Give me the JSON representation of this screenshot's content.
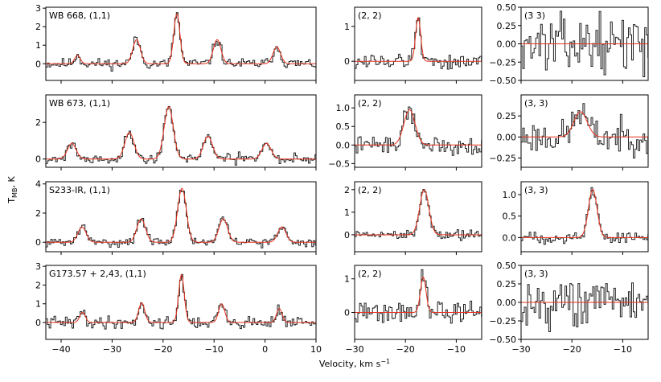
{
  "figure": {
    "ylabel": "T",
    "ylabel_sub": "MB",
    "ylabel_unit": ", K",
    "xlabel": "Velocity, km s",
    "xlabel_sup": "−1"
  },
  "chart_data": {
    "type": "line",
    "description_of_series": "Each panel shows an observed spectrum (black step line) and a Gaussian/hyperfine fit (red line).",
    "columns": [
      {
        "xlim": [
          -43,
          10
        ],
        "xticks": [
          -40,
          -30,
          -20,
          -10,
          0,
          10
        ],
        "xtick_labels": [
          "−40",
          "−30",
          "−20",
          "−10",
          "0",
          "10"
        ]
      },
      {
        "xlim": [
          -30,
          -5
        ],
        "xticks": [
          -30,
          -20,
          -10
        ],
        "xtick_labels": [
          "−30",
          "−20",
          "−10"
        ]
      },
      {
        "xlim": [
          -30,
          -5
        ],
        "xticks": [
          -30,
          -20,
          -10
        ],
        "xtick_labels": [
          "−30",
          "−20",
          "−10"
        ]
      }
    ],
    "rows": [
      {
        "source": "WB 668",
        "panels": [
          {
            "label": "WB 668, (1,1)",
            "transition": "(1,1)",
            "ylim": [
              -0.9,
              3.05
            ],
            "yticks": [
              0,
              1,
              2,
              3
            ],
            "ytick_labels": [
              "0",
              "1",
              "2",
              "3"
            ],
            "noise": 0.18,
            "seed": 11,
            "components": [
              {
                "v": -36.8,
                "amp": 0.45,
                "sigma": 0.55
              },
              {
                "v": -25.2,
                "amp": 1.3,
                "sigma": 0.75
              },
              {
                "v": -17.3,
                "amp": 2.7,
                "sigma": 0.6
              },
              {
                "v": -9.4,
                "amp": 1.3,
                "sigma": 0.75
              },
              {
                "v": 2.3,
                "amp": 0.9,
                "sigma": 0.75
              }
            ]
          },
          {
            "label": "(2, 2)",
            "transition": "(2,2)",
            "ylim": [
              -0.55,
              1.55
            ],
            "yticks": [
              0,
              1
            ],
            "ytick_labels": [
              "0",
              "1"
            ],
            "noise": 0.15,
            "seed": 12,
            "components": [
              {
                "v": -17.5,
                "amp": 1.25,
                "sigma": 0.5
              }
            ]
          },
          {
            "label": "(3 3)",
            "transition": "(3,3)",
            "ylim": [
              -0.5,
              0.5
            ],
            "yticks": [
              -0.5,
              -0.25,
              0.0,
              0.25,
              0.5
            ],
            "ytick_labels": [
              "−0.50",
              "−0.25",
              "0.00",
              "0.25",
              "0.50"
            ],
            "noise": 0.22,
            "seed": 13,
            "components": []
          }
        ]
      },
      {
        "source": "WB 673",
        "panels": [
          {
            "label": "WB 673, (1,1)",
            "transition": "(1,1)",
            "ylim": [
              -0.45,
              3.5
            ],
            "yticks": [
              0,
              2
            ],
            "ytick_labels": [
              "0",
              "2"
            ],
            "noise": 0.17,
            "seed": 21,
            "components": [
              {
                "v": -37.9,
                "amp": 0.85,
                "sigma": 0.85
              },
              {
                "v": -26.6,
                "amp": 1.45,
                "sigma": 0.9
              },
              {
                "v": -18.9,
                "amp": 2.85,
                "sigma": 0.9
              },
              {
                "v": -11.2,
                "amp": 1.25,
                "sigma": 0.9
              },
              {
                "v": 0.3,
                "amp": 0.85,
                "sigma": 0.9
              }
            ]
          },
          {
            "label": "(2, 2)",
            "transition": "(2,2)",
            "ylim": [
              -0.6,
              1.35
            ],
            "yticks": [
              -0.5,
              0.0,
              0.5,
              1.0
            ],
            "ytick_labels": [
              "−0.5",
              "0.0",
              "0.5",
              "1.0"
            ],
            "noise": 0.15,
            "seed": 22,
            "components": [
              {
                "v": -19.2,
                "amp": 0.95,
                "sigma": 1.1
              }
            ]
          },
          {
            "label": "(3, 3)",
            "transition": "(3,3)",
            "ylim": [
              -0.36,
              0.5
            ],
            "yticks": [
              -0.25,
              0.0,
              0.25
            ],
            "ytick_labels": [
              "−0.25",
              "0.00",
              "0.25"
            ],
            "noise": 0.12,
            "seed": 23,
            "components": [
              {
                "v": -18.3,
                "amp": 0.3,
                "sigma": 1.3
              }
            ]
          }
        ]
      },
      {
        "source": "S233-IR",
        "panels": [
          {
            "label": "S233-IR, (1,1)",
            "transition": "(1,1)",
            "ylim": [
              -0.65,
              4.15
            ],
            "yticks": [
              0,
              2,
              4
            ],
            "ytick_labels": [
              "0",
              "2",
              "4"
            ],
            "noise": 0.18,
            "seed": 31,
            "components": [
              {
                "v": -35.9,
                "amp": 1.05,
                "sigma": 0.8
              },
              {
                "v": -24.3,
                "amp": 1.6,
                "sigma": 0.85
              },
              {
                "v": -16.3,
                "amp": 3.7,
                "sigma": 0.85
              },
              {
                "v": -8.2,
                "amp": 1.6,
                "sigma": 0.85
              },
              {
                "v": 3.3,
                "amp": 1.05,
                "sigma": 0.8
              }
            ]
          },
          {
            "label": "(2, 2)",
            "transition": "(2,2)",
            "ylim": [
              -0.75,
              2.35
            ],
            "yticks": [
              0,
              1,
              2
            ],
            "ytick_labels": [
              "0",
              "1",
              "2"
            ],
            "noise": 0.15,
            "seed": 32,
            "components": [
              {
                "v": -16.3,
                "amp": 2.0,
                "sigma": 0.9
              }
            ]
          },
          {
            "label": "(3, 3)",
            "transition": "(3,3)",
            "ylim": [
              -0.33,
              1.3
            ],
            "yticks": [
              0.0,
              0.5,
              1.0
            ],
            "ytick_labels": [
              "0.0",
              "0.5",
              "1.0"
            ],
            "noise": 0.08,
            "seed": 33,
            "components": [
              {
                "v": -15.9,
                "amp": 1.12,
                "sigma": 0.85
              }
            ]
          }
        ]
      },
      {
        "source": "G173.57 + 2,43",
        "panels": [
          {
            "label": "G173.57 + 2,43, (1,1)",
            "transition": "(1,1)",
            "ylim": [
              -0.9,
              3.05
            ],
            "yticks": [
              0,
              1,
              2,
              3
            ],
            "ytick_labels": [
              "0",
              "1",
              "2",
              "3"
            ],
            "noise": 0.2,
            "seed": 41,
            "components": [
              {
                "v": -35.8,
                "amp": 0.55,
                "sigma": 0.55
              },
              {
                "v": -24.2,
                "amp": 1.05,
                "sigma": 0.6
              },
              {
                "v": -16.4,
                "amp": 2.55,
                "sigma": 0.55
              },
              {
                "v": -8.5,
                "amp": 1.0,
                "sigma": 0.6
              },
              {
                "v": 2.8,
                "amp": 0.75,
                "sigma": 0.55
              }
            ]
          },
          {
            "label": "(2, 2)",
            "transition": "(2,2)",
            "ylim": [
              -0.8,
              1.4
            ],
            "yticks": [
              0,
              1
            ],
            "ytick_labels": [
              "0",
              "1"
            ],
            "noise": 0.2,
            "seed": 42,
            "components": [
              {
                "v": -16.5,
                "amp": 1.05,
                "sigma": 0.55
              }
            ]
          },
          {
            "label": "(3, 3)",
            "transition": "(3,3)",
            "ylim": [
              -0.5,
              0.5
            ],
            "yticks": [
              -0.5,
              -0.25,
              0.0,
              0.25,
              0.5
            ],
            "ytick_labels": [
              "−0.50",
              "−0.25",
              "0.00",
              "0.25",
              "0.50"
            ],
            "noise": 0.2,
            "seed": 43,
            "components": []
          }
        ]
      }
    ]
  }
}
